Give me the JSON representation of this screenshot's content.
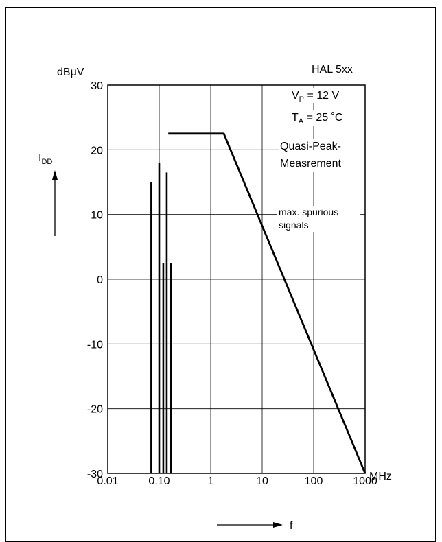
{
  "chart_data": {
    "type": "line",
    "x_scale": "log",
    "xlim": [
      0.01,
      1000
    ],
    "ylim": [
      -30,
      30
    ],
    "x_ticks": [
      0.01,
      0.1,
      1,
      10,
      100,
      1000
    ],
    "x_tick_labels": [
      "0.01",
      "0.10",
      "1",
      "10",
      "100",
      "1000"
    ],
    "y_ticks": [
      30,
      20,
      10,
      0,
      -10,
      -20,
      -30
    ],
    "y_tick_labels": [
      "30",
      "20",
      "10",
      "0",
      "-10",
      "-20",
      "-30"
    ],
    "x_unit": "MHz",
    "x_symbol": "f",
    "y_unit": "dBμV",
    "y_symbol": "I",
    "y_symbol_sub": "DD",
    "grid": true,
    "series": [
      {
        "name": "Quasi-Peak-Measrement",
        "x": [
          0.15,
          1.8,
          1000
        ],
        "y": [
          22.5,
          22.5,
          -30
        ]
      },
      {
        "name": "max. spurious signals",
        "type": "spikes",
        "x": [
          0.07,
          0.1,
          0.12,
          0.14,
          0.17
        ],
        "y": [
          15,
          18,
          2.5,
          16.5,
          2.5
        ]
      }
    ],
    "annotations": {
      "device": "HAL 5xx",
      "vp_sym": "V",
      "vp_sub": "P",
      "vp_val": " = 12 V",
      "ta_sym": "T",
      "ta_sub": "A",
      "ta_val": " = 25 ˚C",
      "label_quasi_1": "Quasi-Peak-",
      "label_quasi_2": "Measrement",
      "label_spur_1": "max. spurious",
      "label_spur_2": "signals"
    }
  }
}
